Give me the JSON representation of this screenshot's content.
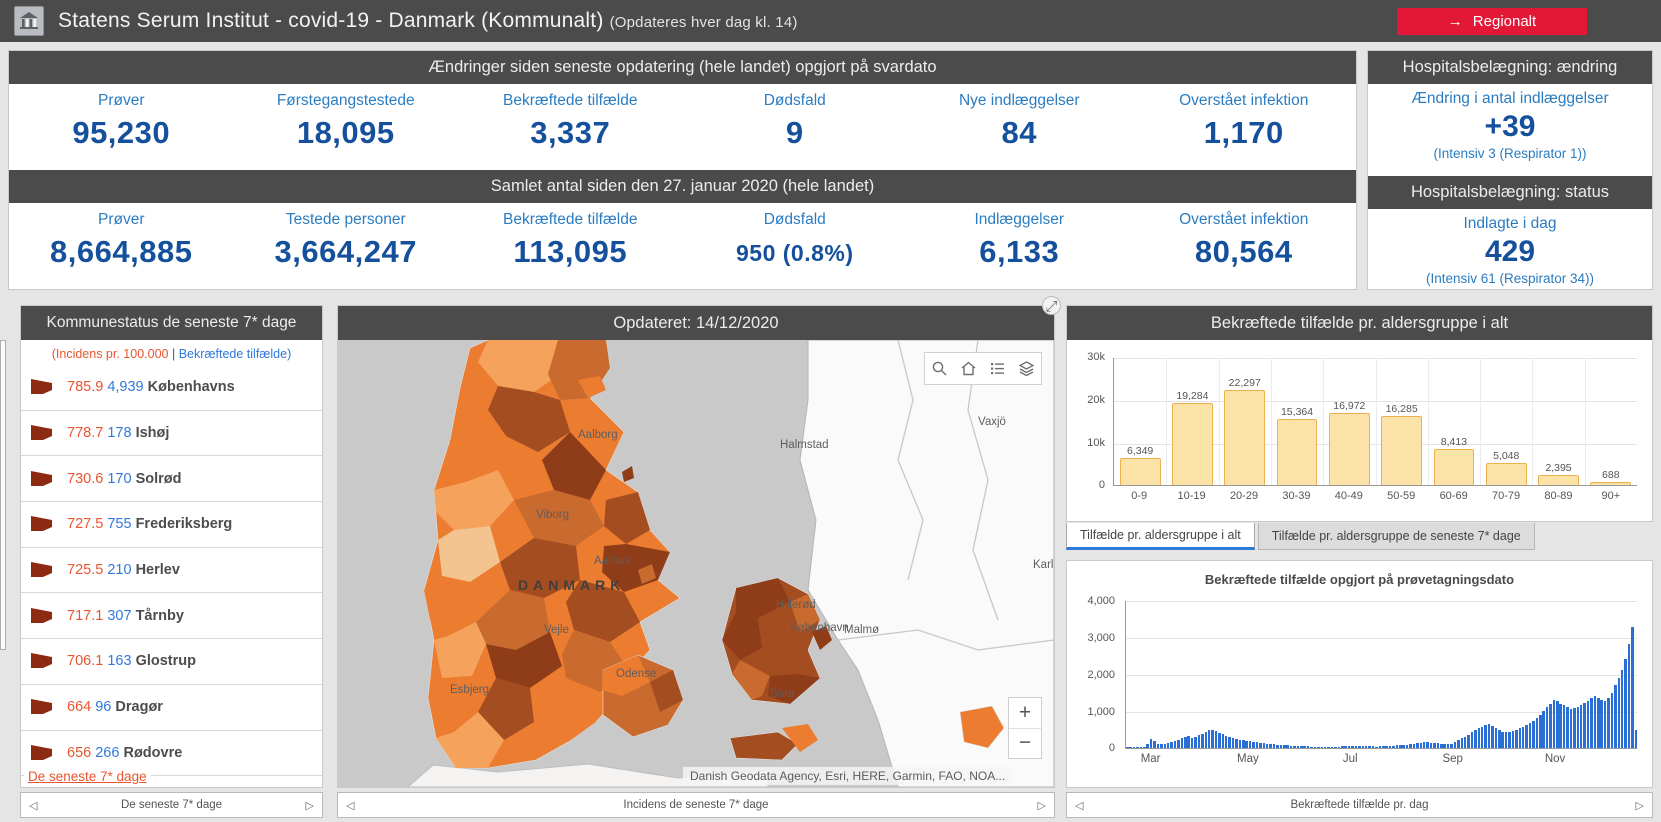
{
  "header": {
    "title": "Statens Serum Institut - covid-19 - Danmark (Kommunalt)",
    "subtitle": "(Opdateres hver dag kl. 14)",
    "regional_button": "Regionalt",
    "regional_arrow": "→"
  },
  "colors": {
    "accent_red": "#e21836",
    "header_gray": "#4b4b4b",
    "label_blue": "#2b7cc1",
    "value_blue": "#15509c",
    "incidence_orange": "#e8552f",
    "cases_blue": "#3178dd",
    "flag_red": "#8d2b12",
    "age_bar_fill": "#fbe2a6",
    "age_bar_border": "#eeb04e",
    "daily_bar_blue": "#2a6fd6"
  },
  "summary_change": {
    "title": "Ændringer siden seneste opdatering (hele landet) opgjort på svardato",
    "stats": [
      {
        "label": "Prøver",
        "value": "95,230"
      },
      {
        "label": "Førstegangstestede",
        "value": "18,095"
      },
      {
        "label": "Bekræftede tilfælde",
        "value": "3,337"
      },
      {
        "label": "Dødsfald",
        "value": "9"
      },
      {
        "label": "Nye indlæggelser",
        "value": "84"
      },
      {
        "label": "Overstået infektion",
        "value": "1,170"
      }
    ]
  },
  "summary_total": {
    "title": "Samlet antal siden den 27. januar 2020 (hele landet)",
    "stats": [
      {
        "label": "Prøver",
        "value": "8,664,885"
      },
      {
        "label": "Testede personer",
        "value": "3,664,247"
      },
      {
        "label": "Bekræftede tilfælde",
        "value": "113,095"
      },
      {
        "label": "Dødsfald",
        "value": "950 (0.8%)"
      },
      {
        "label": "Indlæggelser",
        "value": "6,133"
      },
      {
        "label": "Overstået infektion",
        "value": "80,564"
      }
    ]
  },
  "hospital_change": {
    "title": "Hospitalsbelægning: ændring",
    "label": "Ændring i antal indlæggelser",
    "value": "+39",
    "note": "(Intensiv 3 (Respirator 1))"
  },
  "hospital_status": {
    "title": "Hospitalsbelægning: status",
    "label": "Indlagte i dag",
    "value": "429",
    "note": "(Intensiv 61 (Respirator 34))"
  },
  "municipalities": {
    "title": "Kommunestatus de seneste 7* dage",
    "legend_left": "(Incidens pr. 100.000",
    "legend_sep": "|",
    "legend_right": "Bekræftede tilfælde)",
    "items": [
      {
        "incidence": "785.9",
        "cases": "4,939",
        "name": "Københavns"
      },
      {
        "incidence": "778.7",
        "cases": "178",
        "name": "Ishøj"
      },
      {
        "incidence": "730.6",
        "cases": "170",
        "name": "Solrød"
      },
      {
        "incidence": "727.5",
        "cases": "755",
        "name": "Frederiksberg"
      },
      {
        "incidence": "725.5",
        "cases": "210",
        "name": "Herlev"
      },
      {
        "incidence": "717.1",
        "cases": "307",
        "name": "Tårnby"
      },
      {
        "incidence": "706.1",
        "cases": "163",
        "name": "Glostrup"
      },
      {
        "incidence": "664",
        "cases": "96",
        "name": "Dragør"
      },
      {
        "incidence": "656",
        "cases": "266",
        "name": "Rødovre"
      }
    ],
    "link": "De seneste 7* dage",
    "footer": "De seneste 7* dage"
  },
  "map": {
    "title": "Opdateret: 14/12/2020",
    "footer": "Incidens de seneste 7* dage",
    "attribution": "Danish Geodata Agency, Esri, HERE, Garmin, FAO, NOA...",
    "zoom_in": "+",
    "zoom_out": "−",
    "labels": {
      "aalborg": "Aalborg",
      "viborg": "Viborg",
      "aarhus": "Aarhus",
      "danmark": "DANMARK",
      "vejle": "Vejle",
      "esbjerg": "Esbjerg",
      "odense": "Odense",
      "soro": "Sorø",
      "hillerod": "Hillerød",
      "kobenhavn": "København",
      "malmo": "Malmø",
      "halmstad": "Halmstad",
      "vaxjo": "Vaxjö",
      "karl": "Karl"
    }
  },
  "age_tabs": {
    "tab_all": "Tilfælde pr. aldersgruppe i alt",
    "tab_7days": "Tilfælde pr. aldersgruppe de seneste 7* dage"
  },
  "daily_footer": "Bekræftede tilfælde pr. dag",
  "chart_data": [
    {
      "type": "bar",
      "title": "Bekræftede tilfælde pr. aldersgruppe i alt",
      "categories": [
        "0-9",
        "10-19",
        "20-29",
        "30-39",
        "40-49",
        "50-59",
        "60-69",
        "70-79",
        "80-89",
        "90+"
      ],
      "values": [
        6349,
        19284,
        22297,
        15364,
        16972,
        16285,
        8413,
        5048,
        2395,
        688
      ],
      "value_labels": [
        "6,349",
        "19,284",
        "22,297",
        "15,364",
        "16,972",
        "16,285",
        "8,413",
        "5,048",
        "2,395",
        "688"
      ],
      "xlabel": "",
      "ylabel": "",
      "ylim": [
        0,
        30000
      ],
      "yticks": [
        "30k",
        "20k",
        "10k",
        "0"
      ],
      "grid": true,
      "legend_position": "none"
    },
    {
      "type": "bar",
      "title": "Bekræftede tilfælde opgjort på prøvetagningsdato",
      "x_axis": "date (Feb–Dec 2020, daily)",
      "month_ticks": [
        "Mar",
        "May",
        "Jul",
        "Sep",
        "Nov"
      ],
      "month_positions": [
        0.05,
        0.24,
        0.44,
        0.64,
        0.84
      ],
      "values": [
        2,
        3,
        5,
        8,
        15,
        30,
        120,
        240,
        180,
        100,
        110,
        120,
        140,
        160,
        180,
        210,
        260,
        300,
        320,
        280,
        300,
        340,
        390,
        430,
        480,
        500,
        450,
        410,
        370,
        330,
        300,
        270,
        250,
        230,
        215,
        200,
        185,
        170,
        155,
        140,
        130,
        120,
        110,
        100,
        92,
        85,
        78,
        72,
        66,
        60,
        55,
        50,
        46,
        42,
        38,
        35,
        33,
        31,
        30,
        32,
        34,
        36,
        38,
        42,
        46,
        50,
        54,
        56,
        53,
        50,
        47,
        44,
        42,
        40,
        44,
        48,
        52,
        56,
        62,
        68,
        74,
        82,
        92,
        104,
        118,
        132,
        148,
        156,
        150,
        142,
        134,
        126,
        118,
        110,
        105,
        120,
        160,
        210,
        260,
        310,
        360,
        420,
        480,
        530,
        580,
        620,
        650,
        590,
        530,
        480,
        440,
        420,
        440,
        470,
        500,
        540,
        580,
        630,
        680,
        740,
        820,
        900,
        1000,
        1100,
        1200,
        1300,
        1260,
        1200,
        1150,
        1100,
        1060,
        1080,
        1120,
        1160,
        1220,
        1280,
        1350,
        1400,
        1340,
        1290,
        1260,
        1350,
        1500,
        1700,
        1900,
        2100,
        2400,
        2800,
        3270,
        500
      ],
      "ylim": [
        0,
        4000
      ],
      "yticks": [
        "4,000",
        "3,000",
        "2,000",
        "1,000",
        "0"
      ],
      "grid": true,
      "legend_position": "none"
    }
  ]
}
